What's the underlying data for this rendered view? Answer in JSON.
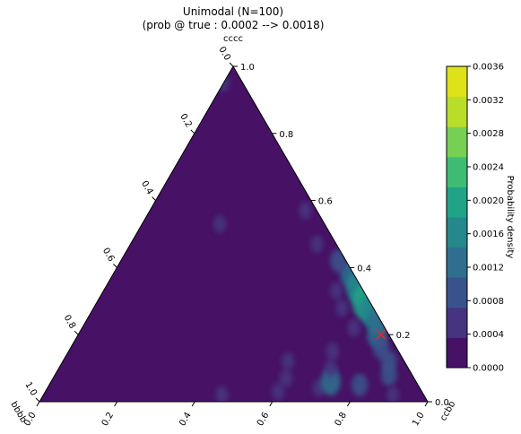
{
  "chart_data": {
    "type": "ternary-contour",
    "title": "Unimodal (N=100)",
    "subtitle": "(prob @ true : 0.0002 --> 0.0018)",
    "axes": {
      "top": {
        "label": "cccc",
        "ticks": [
          "0.0",
          "0.2",
          "0.4",
          "0.6",
          "0.8",
          "1.0"
        ]
      },
      "right": {
        "label": "ccbb",
        "ticks": [
          "0.0",
          "0.2",
          "0.4",
          "0.6",
          "0.8",
          "1.0"
        ]
      },
      "left": {
        "label": "bbbb",
        "ticks": [
          "0.0",
          "0.2",
          "0.4",
          "0.6",
          "0.8",
          "1.0"
        ]
      }
    },
    "colorbar": {
      "label": "Probability density",
      "levels": [
        0.0,
        0.0004,
        0.0008,
        0.0012,
        0.0016,
        0.002,
        0.0024,
        0.0028,
        0.0032,
        0.0036
      ],
      "tick_labels": [
        "0.0000",
        "0.0004",
        "0.0008",
        "0.0012",
        "0.0016",
        "0.0020",
        "0.0024",
        "0.0028",
        "0.0032",
        "0.0036"
      ],
      "colors": [
        "#471265",
        "#463480",
        "#3a528b",
        "#2f6e8e",
        "#24888d",
        "#20a386",
        "#3fbc73",
        "#76d054",
        "#b8de29",
        "#dde318"
      ]
    },
    "background_level_color": "#471265",
    "true_point": {
      "cccc": 0.2,
      "ccbb": 0.78,
      "bbbb": 0.02,
      "marker": "x",
      "color": "#e8262a"
    },
    "density_regions": [
      {
        "cccc": 0.38,
        "ccbb": 0.61,
        "level": 3
      },
      {
        "cccc": 0.34,
        "ccbb": 0.65,
        "level": 4
      },
      {
        "cccc": 0.3,
        "ccbb": 0.69,
        "level": 5
      },
      {
        "cccc": 0.27,
        "ccbb": 0.72,
        "level": 4
      },
      {
        "cccc": 0.24,
        "ccbb": 0.75,
        "level": 3
      },
      {
        "cccc": 0.42,
        "ccbb": 0.56,
        "level": 2
      },
      {
        "cccc": 0.2,
        "ccbb": 0.77,
        "level": 3
      },
      {
        "cccc": 0.16,
        "ccbb": 0.8,
        "level": 2
      },
      {
        "cccc": 0.12,
        "ccbb": 0.84,
        "level": 2
      },
      {
        "cccc": 0.08,
        "ccbb": 0.86,
        "level": 2
      },
      {
        "cccc": 0.05,
        "ccbb": 0.8,
        "level": 2
      },
      {
        "cccc": 0.04,
        "ccbb": 0.7,
        "level": 1
      },
      {
        "cccc": 0.03,
        "ccbb": 0.6,
        "level": 1
      },
      {
        "cccc": 0.06,
        "ccbb": 0.72,
        "level": 3
      },
      {
        "cccc": 0.02,
        "ccbb": 0.9,
        "level": 1
      },
      {
        "cccc": 0.1,
        "ccbb": 0.7,
        "level": 1
      },
      {
        "cccc": 0.15,
        "ccbb": 0.68,
        "level": 1
      },
      {
        "cccc": 0.22,
        "ccbb": 0.7,
        "level": 1
      },
      {
        "cccc": 0.28,
        "ccbb": 0.64,
        "level": 1
      },
      {
        "cccc": 0.33,
        "ccbb": 0.6,
        "level": 1
      },
      {
        "cccc": 0.47,
        "ccbb": 0.48,
        "level": 1
      },
      {
        "cccc": 0.57,
        "ccbb": 0.4,
        "level": 1
      },
      {
        "cccc": 0.53,
        "ccbb": 0.2,
        "level": 1
      },
      {
        "cccc": 0.95,
        "ccbb": 0.0,
        "level": 1
      },
      {
        "cccc": 0.02,
        "ccbb": 0.46,
        "level": 1
      },
      {
        "cccc": 0.07,
        "ccbb": 0.6,
        "level": 1
      },
      {
        "cccc": 0.12,
        "ccbb": 0.58,
        "level": 1
      }
    ]
  }
}
